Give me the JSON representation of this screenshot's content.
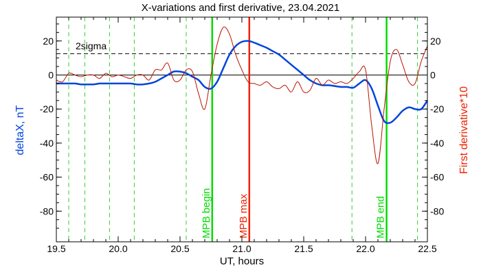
{
  "chart_data": {
    "type": "line",
    "title": "X-variations and first derivative, 23.04.2021",
    "xlabel": "UT, hours",
    "ylabel_left": "deltaX, nT",
    "ylabel_right": "First derivative*10",
    "xlim": [
      19.5,
      22.5
    ],
    "ylim": [
      -98,
      34
    ],
    "x_ticks": [
      19.5,
      20.0,
      20.5,
      21.0,
      21.5,
      22.0,
      22.5
    ],
    "x_tick_labels": [
      "19.5",
      "20.0",
      "20.5",
      "21.0",
      "21.5",
      "22.0",
      "22.5"
    ],
    "y_ticks": [
      20,
      0,
      -20,
      -40,
      -60,
      -80
    ],
    "y_tick_labels": [
      "20",
      "0",
      "-20",
      "-40",
      "-60",
      "-80"
    ],
    "sigma_level": 12.5,
    "sigma_label": "2sigma",
    "zero_line": 0,
    "dashed_green_lines": [
      19.6,
      19.73,
      19.93,
      20.13,
      20.55,
      21.89,
      22.42
    ],
    "events": [
      {
        "x": 20.76,
        "label": "MPB begin",
        "color": "#00dd00"
      },
      {
        "x": 21.06,
        "label": "MPB max",
        "color": "#ee2200"
      },
      {
        "x": 22.17,
        "label": "MPB end",
        "color": "#00dd00"
      }
    ],
    "series": [
      {
        "name": "deltaX, nT",
        "color": "#0044dd",
        "x": [
          19.5,
          19.55,
          19.6,
          19.65,
          19.7,
          19.75,
          19.8,
          19.85,
          19.9,
          19.95,
          20.0,
          20.05,
          20.1,
          20.15,
          20.2,
          20.25,
          20.3,
          20.35,
          20.4,
          20.45,
          20.5,
          20.55,
          20.6,
          20.65,
          20.7,
          20.75,
          20.8,
          20.85,
          20.9,
          20.95,
          21.0,
          21.05,
          21.1,
          21.15,
          21.2,
          21.25,
          21.3,
          21.35,
          21.4,
          21.45,
          21.5,
          21.55,
          21.6,
          21.65,
          21.7,
          21.75,
          21.8,
          21.85,
          21.9,
          21.95,
          22.0,
          22.05,
          22.1,
          22.15,
          22.2,
          22.25,
          22.3,
          22.35,
          22.4,
          22.45,
          22.5
        ],
        "values": [
          -5,
          -5,
          -5,
          -5,
          -5.5,
          -5.5,
          -5.5,
          -5,
          -5,
          -5,
          -5,
          -5,
          -5,
          -5.5,
          -5.5,
          -5,
          -4,
          -2,
          0,
          2,
          2,
          1,
          -1,
          -3,
          -7,
          -8,
          -4,
          4,
          12,
          17,
          19.5,
          20,
          19,
          17.5,
          16,
          14,
          12,
          9,
          6,
          3,
          0,
          -3,
          -5,
          -6,
          -6,
          -6.5,
          -7,
          -7,
          -7.5,
          -5,
          -3,
          -8,
          -18,
          -27,
          -28,
          -25,
          -21,
          -19,
          -20,
          -20,
          -15
        ]
      },
      {
        "name": "First derivative*10",
        "color": "#bb1100",
        "x": [
          19.5,
          19.55,
          19.6,
          19.65,
          19.7,
          19.75,
          19.8,
          19.85,
          19.9,
          19.95,
          20.0,
          20.05,
          20.1,
          20.15,
          20.2,
          20.25,
          20.3,
          20.35,
          20.4,
          20.45,
          20.5,
          20.55,
          20.6,
          20.65,
          20.7,
          20.75,
          20.8,
          20.85,
          20.9,
          20.95,
          21.0,
          21.05,
          21.1,
          21.15,
          21.2,
          21.25,
          21.3,
          21.35,
          21.4,
          21.45,
          21.5,
          21.55,
          21.6,
          21.65,
          21.7,
          21.75,
          21.8,
          21.85,
          21.9,
          21.95,
          22.0,
          22.05,
          22.1,
          22.15,
          22.2,
          22.25,
          22.3,
          22.35,
          22.4,
          22.45,
          22.5
        ],
        "values": [
          -3,
          -4,
          1,
          0,
          -1,
          0,
          0,
          -2,
          1,
          -1,
          0,
          -1,
          -2,
          0,
          0,
          -3,
          3,
          3,
          7,
          -3,
          -3,
          3,
          2,
          -11,
          -20,
          0,
          18,
          28,
          24,
          12,
          3,
          -4,
          -5,
          -6,
          -4,
          -7,
          -8,
          -6,
          -10,
          -4,
          -10,
          -9,
          -2,
          -6,
          -3,
          -5,
          -4,
          -5,
          -2,
          2,
          3,
          -30,
          -52,
          -20,
          8,
          15,
          6,
          -4,
          -5,
          8,
          17
        ]
      }
    ]
  }
}
